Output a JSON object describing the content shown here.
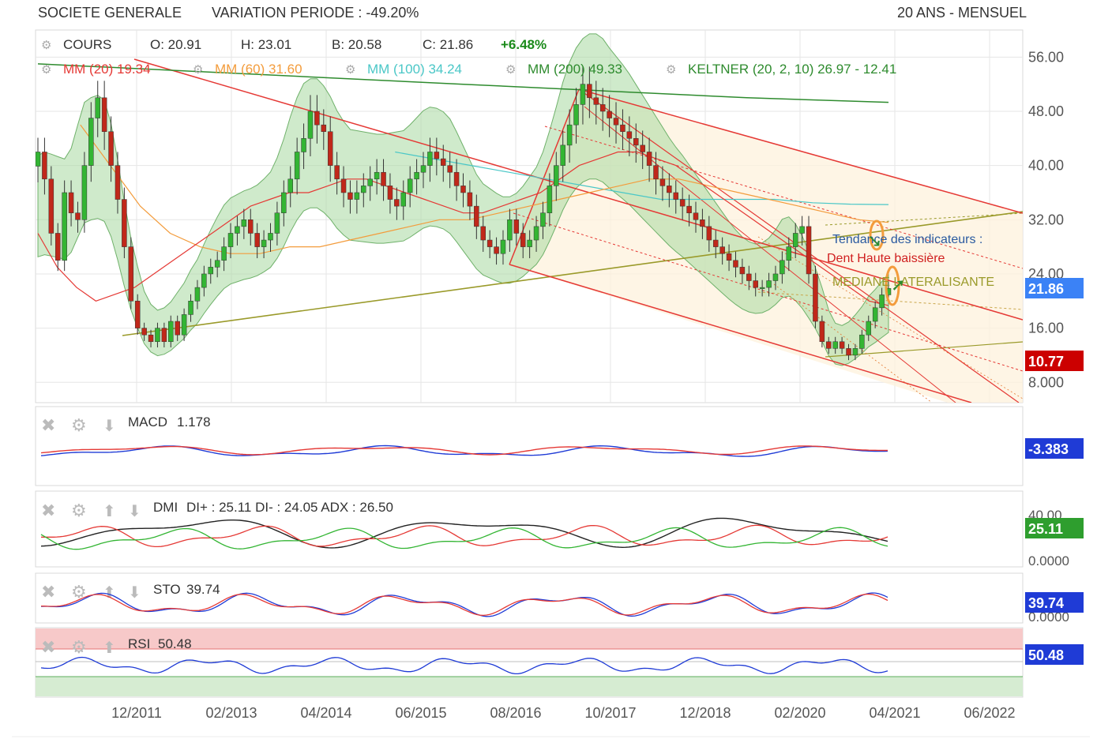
{
  "header": {
    "company": "SOCIETE GENERALE",
    "variation": "VARIATION PERIODE : -49.20%",
    "period": "20 ANS - MENSUEL"
  },
  "legend": {
    "cours_label": "COURS",
    "open": "O: 20.91",
    "high": "H: 23.01",
    "low": "B: 20.58",
    "close": "C: 21.86",
    "change": "+6.48%",
    "mm20": "MM (20)  19.34",
    "mm60": "MM (60)  31.60",
    "mm100": "MM (100)  34.24",
    "mm200": "MM (200)  49.33",
    "keltner": "KELTNER (20, 2, 10)  26.97 - 12.41"
  },
  "annotations": {
    "trend_title": "Tendance des indicateurs :",
    "trend_main": "Dent Haute baissière",
    "trend_median": "MEDIANE LATERALISANTE"
  },
  "price_badges": {
    "last": "21.86",
    "support": "10.77"
  },
  "colors": {
    "mm20": "#e53935",
    "mm60": "#f39c3c",
    "mm100": "#4ac7c7",
    "mm200": "#2e8b2e",
    "keltner_fill": "#a8d8a0",
    "bull_candle": "#33b533",
    "bear_candle": "#c0281a",
    "channel": "#e53935",
    "median": "#9a9a2a",
    "badge_blue": "#3b82f6",
    "badge_red": "#cc0000",
    "badge_green": "#2e9e2e",
    "badge_navy": "#1f3bd6"
  },
  "panels": {
    "macd": {
      "label": "MACD",
      "value": "1.178",
      "badge": "-3.383"
    },
    "dmi": {
      "label": "DMI",
      "value": "DI+ : 25.11 DI- : 24.05 ADX : 26.50",
      "badge": "25.11",
      "ticks": [
        "40.00",
        "0.0000"
      ]
    },
    "sto": {
      "label": "STO",
      "value": "39.74",
      "badge": "39.74",
      "ticks": [
        "0.0000"
      ]
    },
    "rsi": {
      "label": "RSI",
      "value": "50.48",
      "badge": "50.48"
    }
  },
  "chart_data": {
    "type": "candlestick",
    "title": "SOCIETE GENERALE",
    "ylim": [
      5,
      60
    ],
    "y_ticks": [
      "56.00",
      "48.00",
      "40.00",
      "32.00",
      "24.00",
      "16.00",
      "8.000"
    ],
    "x_ticks": [
      "12/2011",
      "02/2013",
      "04/2014",
      "06/2015",
      "08/2016",
      "10/2017",
      "12/2018",
      "02/2020",
      "04/2021",
      "06/2022"
    ],
    "grid": true,
    "last_close": 21.86,
    "monthly_closes": [
      42,
      38,
      30,
      26,
      36,
      33,
      32,
      40,
      47,
      50,
      45,
      40,
      35,
      28,
      20,
      16,
      15,
      14,
      16,
      14,
      17,
      15,
      18,
      20,
      22,
      24,
      25,
      26,
      28,
      30,
      31,
      32,
      30,
      28,
      29,
      30,
      33,
      36,
      38,
      42,
      44,
      48,
      46,
      45,
      40,
      38,
      36,
      35,
      36,
      37,
      38,
      39,
      37,
      35,
      34,
      36,
      38,
      39,
      40,
      42,
      41,
      40,
      39,
      37,
      36,
      34,
      31,
      29,
      28,
      27,
      29,
      32,
      30,
      28,
      29,
      31,
      33,
      37,
      40,
      43,
      46,
      49,
      52,
      50,
      49,
      48,
      47,
      46,
      45,
      44,
      43,
      42,
      40,
      38,
      37,
      36,
      35,
      34,
      33,
      32,
      31,
      29,
      28,
      27,
      26,
      25,
      24,
      23,
      22,
      22,
      23,
      24,
      26,
      28,
      30,
      31,
      24,
      17,
      14,
      13,
      14,
      13,
      12,
      13,
      15,
      17,
      19,
      20.91,
      21.86
    ],
    "mm20": [
      30,
      25,
      22,
      20,
      21,
      22,
      24,
      26,
      28,
      30,
      32,
      34,
      35,
      36,
      36,
      37,
      38,
      38,
      37,
      36,
      35,
      34,
      33,
      33,
      34,
      35,
      36,
      38,
      40,
      41,
      42,
      42,
      41,
      40,
      38,
      36,
      34,
      32,
      30,
      28,
      26,
      24,
      22,
      20,
      19.34
    ],
    "mm60": [
      46,
      40,
      34,
      30,
      28,
      27,
      27,
      28,
      28,
      29,
      30,
      31,
      32,
      32,
      33,
      34,
      35,
      36,
      37,
      38,
      38,
      37,
      36,
      35,
      34,
      33,
      32,
      31.6
    ],
    "mm100": [
      42,
      41,
      40,
      39,
      38,
      37,
      36,
      35,
      35,
      35,
      35,
      34.5,
      34.3,
      34.24
    ],
    "mm200": [
      55,
      54,
      53,
      52,
      51,
      50,
      49.33
    ]
  }
}
